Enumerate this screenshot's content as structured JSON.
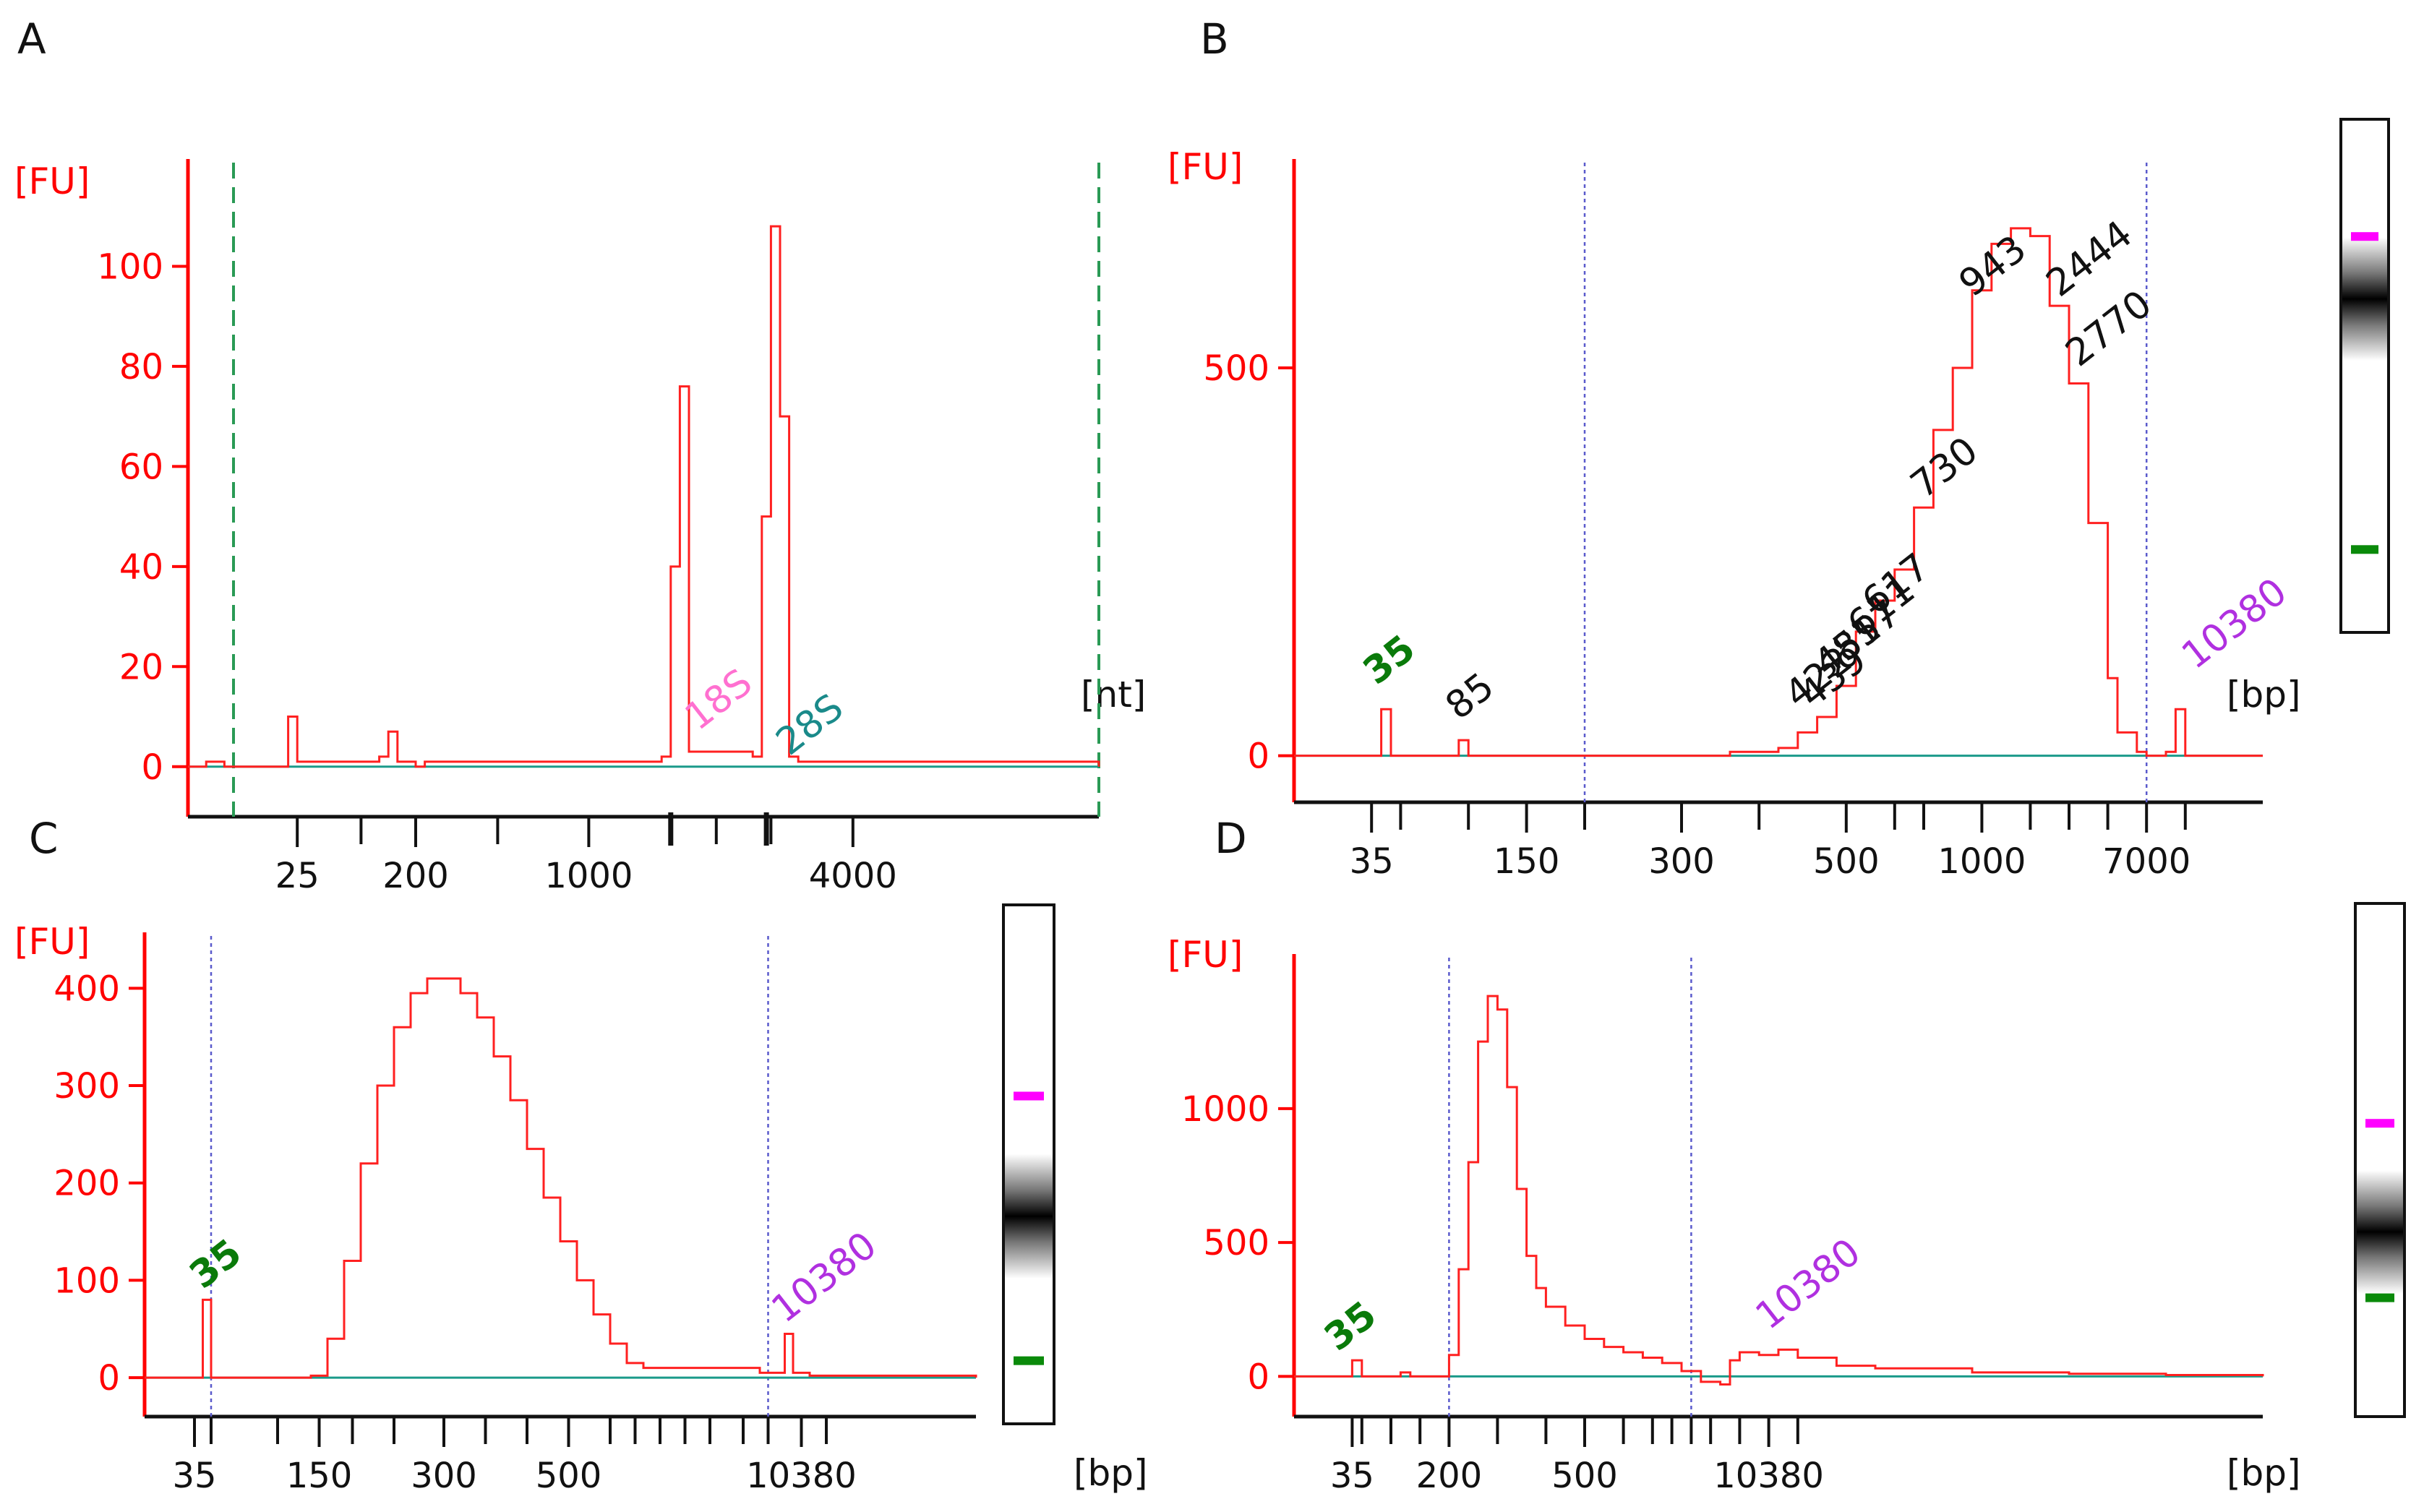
{
  "figure": {
    "panel_letters": [
      "A",
      "B",
      "C",
      "D"
    ]
  },
  "colors": {
    "trace": "#ff2020",
    "axis": "#ff0000",
    "baseline": "#1a9a8a",
    "window": "#5a5acc",
    "marker_green": "#0a7a0a",
    "marker_violet": "#b030e0",
    "marker_pink": "#ff70d0",
    "marker_teal": "#1a8a8a",
    "gel_upper": "#ff00ff",
    "gel_lower": "#0a8a0a"
  },
  "chart_data": [
    {
      "panel": "A",
      "type": "line",
      "ylabel": "[FU]",
      "xunit": "[nt]",
      "ylim": [
        -10,
        120
      ],
      "yticks": [
        0,
        20,
        40,
        60,
        80,
        100
      ],
      "xlim": [
        0,
        100
      ],
      "xtick_labels": [
        {
          "x": 12,
          "label": "25"
        },
        {
          "x": 25,
          "label": "200"
        },
        {
          "x": 44,
          "label": "1000"
        },
        {
          "x": 73,
          "label": "4000"
        }
      ],
      "xticks_minor": [
        19,
        34,
        53,
        58,
        64
      ],
      "xticks_major": [
        53,
        63.5
      ],
      "window_lines": [
        5,
        100
      ],
      "series": [
        {
          "name": "trace",
          "x": [
            0,
            1,
            2,
            3,
            4,
            5,
            10,
            11,
            12,
            13,
            20,
            21,
            22,
            23,
            24,
            25,
            26,
            27,
            28,
            52,
            53,
            54,
            55,
            62,
            63,
            64,
            65,
            66,
            67,
            80,
            81,
            82,
            98,
            100
          ],
          "y": [
            0,
            0,
            1,
            1,
            0,
            0,
            0,
            10,
            1,
            1,
            1,
            2,
            7,
            1,
            1,
            0,
            1,
            1,
            1,
            2,
            40,
            76,
            3,
            2,
            50,
            108,
            70,
            2,
            1,
            1,
            1,
            1,
            1,
            0
          ]
        }
      ],
      "annotations": [
        {
          "x": 56,
          "y": 7,
          "label": "18S",
          "color": "pink"
        },
        {
          "x": 66,
          "y": 2,
          "label": "28S",
          "color": "teal"
        }
      ]
    },
    {
      "panel": "B",
      "type": "line",
      "ylabel": "[FU]",
      "xunit": "[bp]",
      "ylim": [
        -60,
        760
      ],
      "yticks": [
        0,
        500
      ],
      "xlim": [
        0,
        100
      ],
      "xtick_labels": [
        {
          "x": 8,
          "label": "35"
        },
        {
          "x": 24,
          "label": "150"
        },
        {
          "x": 40,
          "label": "300"
        },
        {
          "x": 57,
          "label": "500"
        },
        {
          "x": 71,
          "label": "1000"
        },
        {
          "x": 88,
          "label": "7000"
        }
      ],
      "xticks_minor": [
        11,
        18,
        30,
        48,
        62,
        65,
        76,
        80,
        84,
        92
      ],
      "window_lines": [
        30,
        88
      ],
      "series": [
        {
          "name": "trace",
          "x": [
            0,
            8,
            9,
            10,
            16,
            17,
            18,
            42,
            45,
            50,
            52,
            54,
            56,
            58,
            60,
            62,
            64,
            66,
            68,
            70,
            72,
            74,
            76,
            78,
            80,
            82,
            84,
            85,
            87,
            88,
            90,
            91,
            92,
            100
          ],
          "y": [
            0,
            0,
            60,
            0,
            0,
            20,
            0,
            0,
            5,
            10,
            30,
            50,
            90,
            160,
            200,
            240,
            320,
            420,
            500,
            600,
            660,
            680,
            670,
            580,
            480,
            300,
            100,
            30,
            5,
            0,
            5,
            60,
            0,
            0
          ]
        }
      ],
      "annotations": [
        {
          "x": 8.5,
          "y": 90,
          "label": "35",
          "color": "green"
        },
        {
          "x": 17,
          "y": 45,
          "label": "85"
        },
        {
          "x": 52,
          "y": 60,
          "label": "422"
        },
        {
          "x": 53.5,
          "y": 60,
          "label": "439"
        },
        {
          "x": 55,
          "y": 100,
          "label": "481"
        },
        {
          "x": 57,
          "y": 120,
          "label": "557"
        },
        {
          "x": 58.5,
          "y": 150,
          "label": "611"
        },
        {
          "x": 60,
          "y": 180,
          "label": "617"
        },
        {
          "x": 65,
          "y": 330,
          "label": "730"
        },
        {
          "x": 70,
          "y": 590,
          "label": "943"
        },
        {
          "x": 79,
          "y": 590,
          "label": "2444"
        },
        {
          "x": 81,
          "y": 500,
          "label": "2770"
        },
        {
          "x": 93,
          "y": 110,
          "label": "10380",
          "color": "violet"
        }
      ],
      "gel": {
        "upper_marker": 0.22,
        "band_center": 0.35,
        "lower_marker": 0.83
      }
    },
    {
      "panel": "C",
      "type": "line",
      "ylabel": "[FU]",
      "xunit": "[bp]",
      "ylim": [
        -40,
        450
      ],
      "yticks": [
        0,
        100,
        200,
        300,
        400
      ],
      "xlim": [
        0,
        100
      ],
      "xtick_labels": [
        {
          "x": 6,
          "label": "35"
        },
        {
          "x": 21,
          "label": "150"
        },
        {
          "x": 36,
          "label": "300"
        },
        {
          "x": 51,
          "label": "500"
        },
        {
          "x": 79,
          "label": "10380"
        }
      ],
      "xticks_minor": [
        8,
        16,
        25,
        30,
        41,
        46,
        56,
        59,
        62,
        65,
        68,
        72,
        75,
        82
      ],
      "window_lines": [
        8,
        75
      ],
      "series": [
        {
          "name": "trace",
          "x": [
            0,
            6,
            7,
            8,
            10,
            20,
            22,
            24,
            26,
            28,
            30,
            32,
            34,
            36,
            38,
            40,
            42,
            44,
            46,
            48,
            50,
            52,
            54,
            56,
            58,
            60,
            62,
            64,
            66,
            70,
            74,
            76,
            77,
            78,
            80,
            90,
            100
          ],
          "y": [
            0,
            0,
            80,
            0,
            0,
            2,
            40,
            120,
            220,
            300,
            360,
            395,
            410,
            410,
            395,
            370,
            330,
            285,
            235,
            185,
            140,
            100,
            65,
            35,
            15,
            10,
            10,
            10,
            10,
            10,
            5,
            5,
            45,
            5,
            2,
            2,
            0
          ]
        }
      ],
      "annotations": [
        {
          "x": 7,
          "y": 90,
          "label": "35",
          "color": "green"
        },
        {
          "x": 77,
          "y": 55,
          "label": "10380",
          "color": "violet"
        }
      ],
      "gel": {
        "upper_marker": 0.36,
        "band_center": 0.6,
        "lower_marker": 0.87
      }
    },
    {
      "panel": "D",
      "type": "line",
      "ylabel": "[FU]",
      "xunit": "[bp]",
      "ylim": [
        -150,
        1550
      ],
      "yticks": [
        0,
        500,
        1000
      ],
      "xlim": [
        0,
        100
      ],
      "xtick_labels": [
        {
          "x": 6,
          "label": "35"
        },
        {
          "x": 16,
          "label": "200"
        },
        {
          "x": 30,
          "label": "500"
        },
        {
          "x": 49,
          "label": "10380"
        }
      ],
      "xticks_minor": [
        7,
        10,
        13,
        21,
        26,
        34,
        37,
        39,
        41,
        43,
        46,
        52
      ],
      "window_lines": [
        16,
        41
      ],
      "series": [
        {
          "name": "trace",
          "x": [
            0,
            5,
            6,
            7,
            10,
            11,
            12,
            15,
            16,
            17,
            18,
            19,
            20,
            21,
            22,
            23,
            24,
            25,
            26,
            28,
            30,
            32,
            34,
            36,
            38,
            40,
            42,
            44,
            45,
            46,
            48,
            50,
            52,
            56,
            60,
            70,
            80,
            90,
            100
          ],
          "y": [
            0,
            0,
            60,
            0,
            0,
            15,
            0,
            0,
            80,
            400,
            800,
            1250,
            1420,
            1370,
            1080,
            700,
            450,
            330,
            260,
            190,
            140,
            110,
            90,
            70,
            50,
            20,
            -20,
            -30,
            60,
            90,
            80,
            100,
            70,
            40,
            30,
            15,
            10,
            5,
            0
          ]
        }
      ],
      "annotations": [
        {
          "x": 4.5,
          "y": 90,
          "label": "35",
          "color": "green"
        },
        {
          "x": 49,
          "y": 170,
          "label": "10380",
          "color": "violet"
        }
      ],
      "gel": {
        "upper_marker": 0.42,
        "band_center": 0.64,
        "lower_marker": 0.76
      }
    }
  ]
}
